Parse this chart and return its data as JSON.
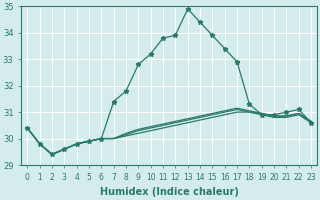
{
  "x": [
    0,
    1,
    2,
    3,
    4,
    5,
    6,
    7,
    8,
    9,
    10,
    11,
    12,
    13,
    14,
    15,
    16,
    17,
    18,
    19,
    20,
    21,
    22,
    23
  ],
  "line1": [
    30.4,
    29.8,
    29.4,
    29.6,
    29.8,
    29.9,
    30.0,
    31.4,
    31.8,
    32.8,
    33.2,
    33.8,
    33.9,
    34.9,
    34.4,
    33.9,
    33.4,
    32.9,
    31.3,
    30.9,
    30.9,
    31.0,
    31.1,
    30.6
  ],
  "line2": [
    30.4,
    29.8,
    29.4,
    29.6,
    29.8,
    29.9,
    30.0,
    30.0,
    30.1,
    30.2,
    30.3,
    30.4,
    30.5,
    30.6,
    30.7,
    30.8,
    30.9,
    31.0,
    31.0,
    30.9,
    30.8,
    30.8,
    30.9,
    30.6
  ],
  "line3": [
    30.4,
    29.8,
    29.4,
    29.6,
    29.8,
    29.9,
    30.0,
    30.0,
    30.15,
    30.3,
    30.4,
    30.5,
    30.6,
    30.7,
    30.8,
    30.9,
    31.0,
    31.1,
    31.0,
    30.95,
    30.85,
    30.85,
    30.95,
    30.65
  ],
  "line4": [
    30.4,
    29.8,
    29.4,
    29.6,
    29.8,
    29.9,
    30.0,
    30.0,
    30.2,
    30.35,
    30.45,
    30.55,
    30.65,
    30.75,
    30.85,
    30.95,
    31.05,
    31.15,
    31.05,
    30.95,
    30.85,
    30.85,
    30.95,
    30.65
  ],
  "color": "#2a7a68",
  "bg_color": "#d4ecec",
  "grid_color": "#b0d4d4",
  "ylim": [
    29,
    35
  ],
  "xlim": [
    -0.5,
    23.5
  ],
  "yticks": [
    29,
    30,
    31,
    32,
    33,
    34,
    35
  ],
  "xticks": [
    0,
    1,
    2,
    3,
    4,
    5,
    6,
    7,
    8,
    9,
    10,
    11,
    12,
    13,
    14,
    15,
    16,
    17,
    18,
    19,
    20,
    21,
    22,
    23
  ],
  "xlabel": "Humidex (Indice chaleur)",
  "tick_fontsize": 5.5,
  "label_fontsize": 7
}
